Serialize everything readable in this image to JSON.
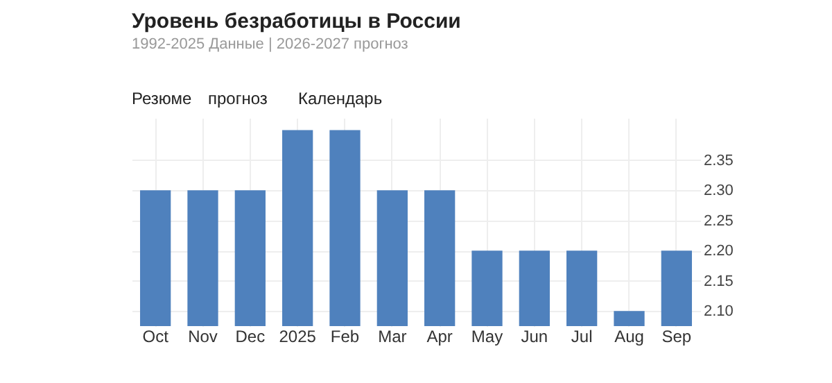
{
  "chart_data": {
    "type": "bar",
    "title": "Уровень безработицы в России",
    "subtitle": "1992-2025 Данные | 2026-2027 прогноз",
    "annotations": [
      "Резюме",
      "прогноз",
      "Календарь"
    ],
    "categories": [
      "Oct",
      "Nov",
      "Dec",
      "2025",
      "Feb",
      "Mar",
      "Apr",
      "May",
      "Jun",
      "Jul",
      "Aug",
      "Sep"
    ],
    "values": [
      2.3,
      2.3,
      2.3,
      2.4,
      2.4,
      2.3,
      2.3,
      2.2,
      2.2,
      2.2,
      2.1,
      2.2
    ],
    "color": "#4f81bd",
    "ylim": [
      2.075,
      2.42
    ],
    "yticks": [
      {
        "value": 2.1,
        "label": "2.10"
      },
      {
        "value": 2.15,
        "label": "2.15"
      },
      {
        "value": 2.2,
        "label": "2.20"
      },
      {
        "value": 2.25,
        "label": "2.25"
      },
      {
        "value": 2.3,
        "label": "2.30"
      },
      {
        "value": 2.35,
        "label": "2.35"
      }
    ],
    "grid": true
  }
}
